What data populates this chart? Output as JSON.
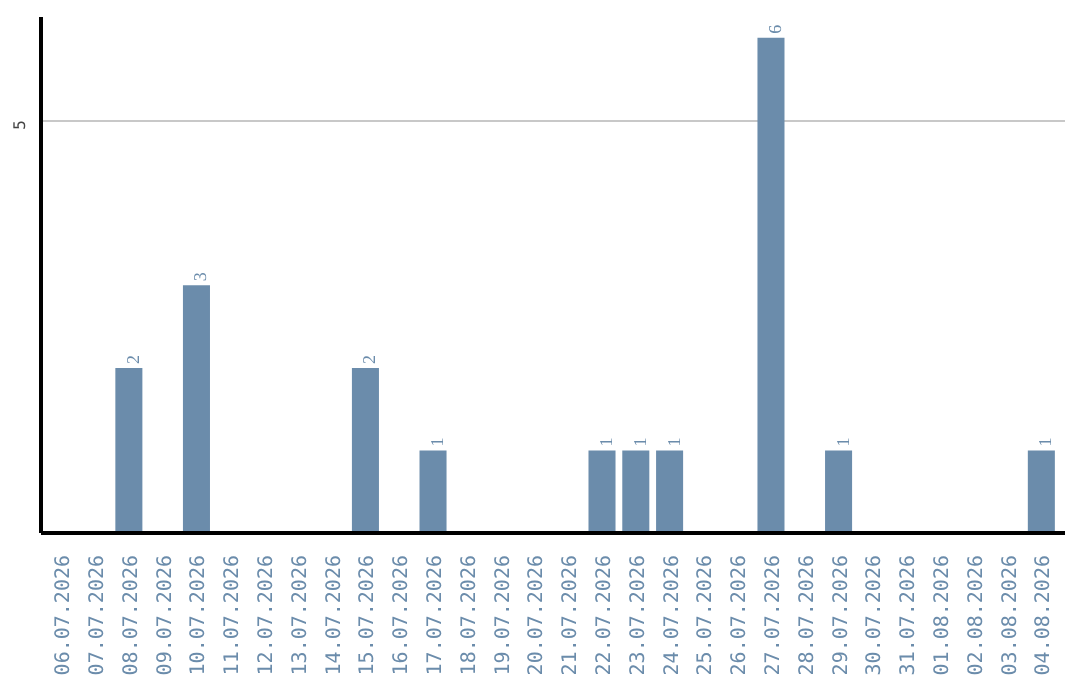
{
  "chart_data": {
    "type": "bar",
    "categories": [
      "06.07.2026",
      "07.07.2026",
      "08.07.2026",
      "09.07.2026",
      "10.07.2026",
      "11.07.2026",
      "12.07.2026",
      "13.07.2026",
      "14.07.2026",
      "15.07.2026",
      "16.07.2026",
      "17.07.2026",
      "18.07.2026",
      "19.07.2026",
      "20.07.2026",
      "21.07.2026",
      "22.07.2026",
      "23.07.2026",
      "24.07.2026",
      "25.07.2026",
      "26.07.2026",
      "27.07.2026",
      "28.07.2026",
      "29.07.2026",
      "30.07.2026",
      "31.07.2026",
      "01.08.2026",
      "02.08.2026",
      "03.08.2026",
      "04.08.2026"
    ],
    "values": [
      0,
      0,
      2,
      0,
      3,
      0,
      0,
      0,
      0,
      2,
      0,
      1,
      0,
      0,
      0,
      0,
      1,
      1,
      1,
      0,
      0,
      6,
      0,
      1,
      0,
      0,
      0,
      0,
      0,
      1
    ],
    "value_labels": [
      null,
      null,
      "2",
      null,
      "3",
      null,
      null,
      null,
      null,
      "2",
      null,
      "1",
      null,
      null,
      null,
      null,
      "1",
      "1",
      "1",
      null,
      null,
      "6",
      null,
      "1",
      null,
      null,
      null,
      null,
      null,
      "1"
    ],
    "color": "#6b8cab",
    "ylim": [
      0,
      6.25
    ],
    "yticks": [
      5
    ],
    "grid": "y"
  }
}
